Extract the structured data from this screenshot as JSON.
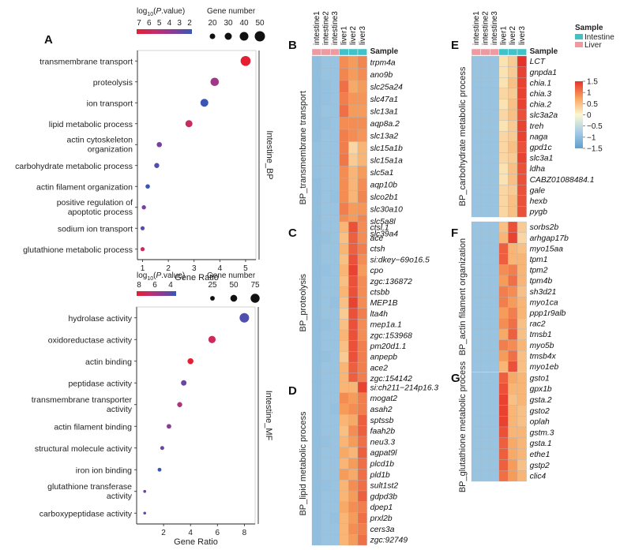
{
  "chart_data": [
    {
      "panel": "A",
      "type": "scatter",
      "facet": "Intestine_BP",
      "xlabel": "Gene Ratio",
      "xlim": [
        0.8,
        5.4
      ],
      "xticks": [
        "1",
        "2",
        "3",
        "4",
        "5"
      ],
      "color_legend_title": "log10(P.value)",
      "color_legend_ticks": [
        "7",
        "6",
        "5",
        "4",
        "3",
        "2"
      ],
      "size_legend_title": "Gene number",
      "size_legend_values": [
        "20",
        "30",
        "40",
        "50"
      ],
      "categories": [
        "transmembrane transport",
        "proteolysis",
        "ion transport",
        "lipid metabolic process",
        "actin cytoskeleton organization",
        "carbohydrate metabolic process",
        "actin filament organization",
        "positive regulation of apoptotic process",
        "sodium ion transport",
        "glutathione metabolic process"
      ],
      "gene_ratio": [
        5.0,
        3.8,
        3.4,
        2.8,
        1.65,
        1.55,
        1.2,
        1.05,
        1.0,
        1.0
      ],
      "neg_log10_p": [
        7,
        5,
        2,
        6,
        4,
        3,
        2,
        4,
        3,
        6
      ],
      "gene_number": [
        48,
        38,
        35,
        30,
        18,
        17,
        13,
        12,
        11,
        11
      ]
    },
    {
      "panel": "A2",
      "type": "scatter",
      "facet": "Intestine_MF",
      "xlabel": "Gene Ratio",
      "xlim": [
        0,
        8.8
      ],
      "xticks": [
        "2",
        "4",
        "6",
        "8"
      ],
      "color_legend_title": "log10(P.value)",
      "color_legend_ticks": [
        "8",
        "6",
        "4"
      ],
      "size_legend_title": "Gene number",
      "size_legend_values": [
        "25",
        "50",
        "75"
      ],
      "categories": [
        "hydrolase activity",
        "oxidoreductase activity",
        "actin binding",
        "peptidase activity",
        "transmembrane transporter activity",
        "actin filament binding",
        "structural molecule activity",
        "iron ion binding",
        "glutathione transferase activity",
        "carboxypeptidase activity"
      ],
      "gene_ratio": [
        8.0,
        5.6,
        4.0,
        3.5,
        3.2,
        2.4,
        1.9,
        1.7,
        0.6,
        0.6
      ],
      "neg_log10_p": [
        4,
        8,
        9,
        5,
        7,
        6,
        5,
        3,
        5,
        4
      ],
      "gene_number": [
        80,
        55,
        40,
        35,
        30,
        25,
        18,
        16,
        6,
        5
      ]
    },
    {
      "type": "heatmap",
      "columns": [
        "intestine1",
        "intestine2",
        "intestine3",
        "liver1",
        "liver2",
        "liver3"
      ],
      "annotation_label": "Sample",
      "annotation_legend_title": "Sample",
      "annotation_groups": [
        "Intestine",
        "Liver"
      ],
      "scale_ticks": [
        "1.5",
        "1",
        "0.5",
        "0",
        "−0.5",
        "−1",
        "−1.5"
      ],
      "scale_range": [
        -1.5,
        1.5
      ],
      "panels": [
        {
          "panel": "B",
          "title": "BP_transmembrane transport",
          "genes": [
            "trpm4a",
            "ano9b",
            "slc25a24",
            "slc47a1",
            "slc13a1",
            "aqp8a.2",
            "slc13a2",
            "slc15a1b",
            "slc15a1a",
            "slc5a1",
            "aqp10b",
            "slco2b1",
            "slc30a10",
            "slc5a8l",
            "slc39a4"
          ],
          "values": [
            [
              -1.0,
              -0.9,
              -0.9,
              0.9,
              0.8,
              0.95
            ],
            [
              -1.0,
              -0.9,
              -0.9,
              0.95,
              0.8,
              0.9
            ],
            [
              -1.0,
              -0.95,
              -0.9,
              1.1,
              0.7,
              0.8
            ],
            [
              -1.0,
              -0.95,
              -0.9,
              1.0,
              0.85,
              0.85
            ],
            [
              -1.0,
              -0.9,
              -0.9,
              1.1,
              0.8,
              0.8
            ],
            [
              -1.0,
              -0.95,
              -0.9,
              0.9,
              0.9,
              0.9
            ],
            [
              -1.0,
              -0.9,
              -0.9,
              1.0,
              0.9,
              0.85
            ],
            [
              -0.95,
              -0.9,
              -0.9,
              1.0,
              0.3,
              0.6
            ],
            [
              -0.95,
              -0.9,
              -0.9,
              1.05,
              0.4,
              0.6
            ],
            [
              -0.95,
              -0.9,
              -0.9,
              0.9,
              0.6,
              0.8
            ],
            [
              -1.0,
              -0.9,
              -0.9,
              0.9,
              0.6,
              0.9
            ],
            [
              -1.0,
              -0.9,
              -0.95,
              0.9,
              0.6,
              0.95
            ],
            [
              -1.0,
              -0.9,
              -0.9,
              1.0,
              0.8,
              0.85
            ],
            [
              -1.0,
              -0.9,
              -0.9,
              0.9,
              0.8,
              0.95
            ],
            [
              -1.0,
              -0.95,
              -0.9,
              0.9,
              0.85,
              0.95
            ]
          ]
        },
        {
          "panel": "C",
          "title": "BP_proteolysis",
          "genes": [
            "ctsl.1",
            "ace",
            "ctsh",
            "si:dkey−69o16.5",
            "cpo",
            "zgc:136872",
            "ctsbb",
            "MEP1B",
            "lta4h",
            "mep1a.1",
            "zgc:153968",
            "pm20d1.1",
            "anpepb",
            "ace2",
            "zgc:154142"
          ],
          "values": [
            [
              -1.0,
              -0.9,
              -0.9,
              0.6,
              1.3,
              0.9
            ],
            [
              -1.0,
              -0.95,
              -0.9,
              0.5,
              1.2,
              0.9
            ],
            [
              -1.0,
              -0.9,
              -0.9,
              0.6,
              1.2,
              1.0
            ],
            [
              -1.0,
              -0.9,
              -0.9,
              0.5,
              1.3,
              0.9
            ],
            [
              -1.0,
              -0.95,
              -0.9,
              0.6,
              1.4,
              0.8
            ],
            [
              -1.0,
              -0.9,
              -0.9,
              0.5,
              1.3,
              0.9
            ],
            [
              -1.0,
              -0.9,
              -0.9,
              0.6,
              1.3,
              0.9
            ],
            [
              -1.0,
              -0.9,
              -0.95,
              0.5,
              1.4,
              0.9
            ],
            [
              -1.0,
              -0.9,
              -0.9,
              0.4,
              1.3,
              1.0
            ],
            [
              -1.0,
              -0.95,
              -0.9,
              0.5,
              1.3,
              0.9
            ],
            [
              -1.0,
              -0.9,
              -0.9,
              0.6,
              1.3,
              0.9
            ],
            [
              -1.0,
              -0.9,
              -0.9,
              0.5,
              1.3,
              1.0
            ],
            [
              -1.0,
              -0.95,
              -0.9,
              0.4,
              1.3,
              1.0
            ],
            [
              -1.0,
              -0.9,
              -0.9,
              0.6,
              1.2,
              1.0
            ],
            [
              -1.0,
              -0.9,
              -0.9,
              0.6,
              1.2,
              1.0
            ]
          ]
        },
        {
          "panel": "D",
          "title": "BP_lipid metabolic process",
          "genes": [
            "si:ch211−214p16.3",
            "mogat2",
            "asah2",
            "sptssb",
            "faah2b",
            "neu3.3",
            "agpat9l",
            "plcd1b",
            "pld1b",
            "sult1st2",
            "gdpd3b",
            "dpep1",
            "prxl2b",
            "cers3a",
            "zgc:92749"
          ],
          "values": [
            [
              -1.0,
              -0.9,
              -0.9,
              0.6,
              0.6,
              1.4
            ],
            [
              -1.0,
              -0.9,
              -0.9,
              0.9,
              0.8,
              1.0
            ],
            [
              -1.0,
              -0.9,
              -0.95,
              0.8,
              0.9,
              1.0
            ],
            [
              -1.0,
              -0.9,
              -0.9,
              0.6,
              0.7,
              1.2
            ],
            [
              -1.0,
              -0.9,
              -0.9,
              0.5,
              0.9,
              1.2
            ],
            [
              -1.0,
              -0.95,
              -0.9,
              0.6,
              0.8,
              1.1
            ],
            [
              -1.0,
              -0.9,
              -0.9,
              0.7,
              0.6,
              1.2
            ],
            [
              -1.0,
              -0.9,
              -0.9,
              0.6,
              0.8,
              1.1
            ],
            [
              -1.0,
              -0.9,
              -0.9,
              0.8,
              0.7,
              1.1
            ],
            [
              -1.0,
              -0.95,
              -0.9,
              0.6,
              0.9,
              1.1
            ],
            [
              -1.0,
              -0.9,
              -0.9,
              0.6,
              0.8,
              1.2
            ],
            [
              -1.0,
              -0.9,
              -0.9,
              0.7,
              0.9,
              1.0
            ],
            [
              -1.0,
              -0.9,
              -0.95,
              0.6,
              0.8,
              1.1
            ],
            [
              -1.0,
              -0.9,
              -0.9,
              0.6,
              0.9,
              1.0
            ],
            [
              -1.0,
              -0.9,
              -0.9,
              0.6,
              0.8,
              1.1
            ]
          ]
        },
        {
          "panel": "E",
          "title": "BP_carbohydrate metabolic process",
          "genes": [
            "LCT",
            "gnpda1",
            "chia.1",
            "chia.3",
            "chia.2",
            "slc3a2a",
            "treh",
            "naga",
            "gpd1c",
            "slc3a1",
            "ldha",
            "CABZ01088484.1",
            "gale",
            "hexb",
            "pygb"
          ],
          "values": [
            [
              -0.9,
              -0.9,
              -0.9,
              0.2,
              0.4,
              1.5
            ],
            [
              -0.9,
              -0.9,
              -0.9,
              0.2,
              0.4,
              1.4
            ],
            [
              -0.9,
              -0.9,
              -0.9,
              0.2,
              0.5,
              1.4
            ],
            [
              -0.9,
              -0.9,
              -0.9,
              0.3,
              0.4,
              1.4
            ],
            [
              -0.9,
              -0.9,
              -0.9,
              0.2,
              0.5,
              1.4
            ],
            [
              -0.9,
              -0.9,
              -0.9,
              0.3,
              0.5,
              1.3
            ],
            [
              -0.9,
              -0.9,
              -0.9,
              0.2,
              0.4,
              1.4
            ],
            [
              -0.9,
              -0.9,
              -0.9,
              0.3,
              0.4,
              1.4
            ],
            [
              -0.9,
              -0.9,
              -0.9,
              0.3,
              0.5,
              1.3
            ],
            [
              -0.9,
              -0.9,
              -0.9,
              0.3,
              0.4,
              1.4
            ],
            [
              -0.9,
              -0.9,
              -0.9,
              0.2,
              0.5,
              1.3
            ],
            [
              -0.9,
              -0.9,
              -0.9,
              0.2,
              0.5,
              1.3
            ],
            [
              -0.9,
              -0.9,
              -0.9,
              0.3,
              0.4,
              1.3
            ],
            [
              -0.9,
              -0.9,
              -0.9,
              0.3,
              0.5,
              1.3
            ],
            [
              -0.9,
              -0.9,
              -0.9,
              0.3,
              0.5,
              1.3
            ]
          ]
        },
        {
          "panel": "F",
          "title": "BP_actin filament organization",
          "genes": [
            "sorbs2b",
            "arhgap17b",
            "myo15aa",
            "tpm1",
            "tpm2",
            "tpm4b",
            "sh3d21",
            "myo1ca",
            "ppp1r9alb",
            "rac2",
            "tmsb1",
            "myo5b",
            "tmsb4x",
            "myo1eb"
          ],
          "values": [
            [
              -0.9,
              -0.9,
              -0.9,
              0.5,
              1.3,
              0.4
            ],
            [
              -0.9,
              -0.9,
              -0.9,
              0.6,
              1.4,
              0.3
            ],
            [
              -0.9,
              -0.9,
              -0.9,
              1.2,
              0.6,
              0.5
            ],
            [
              -0.9,
              -0.9,
              -0.9,
              1.2,
              0.6,
              0.6
            ],
            [
              -0.9,
              -0.9,
              -0.9,
              0.9,
              1.0,
              0.6
            ],
            [
              -0.9,
              -0.9,
              -0.9,
              0.8,
              1.1,
              0.6
            ],
            [
              -0.9,
              -0.9,
              -0.9,
              1.0,
              0.9,
              0.5
            ],
            [
              -0.9,
              -0.9,
              -0.9,
              1.0,
              0.8,
              0.6
            ],
            [
              -0.9,
              -0.9,
              -0.9,
              0.8,
              1.0,
              0.6
            ],
            [
              -0.9,
              -0.9,
              -0.9,
              0.9,
              1.1,
              0.5
            ],
            [
              -0.9,
              -0.9,
              -0.9,
              0.7,
              1.2,
              0.5
            ],
            [
              -0.9,
              -0.9,
              -0.9,
              1.0,
              0.9,
              0.6
            ],
            [
              -0.9,
              -0.9,
              -0.9,
              0.8,
              1.1,
              0.5
            ],
            [
              -0.9,
              -0.9,
              -0.9,
              0.6,
              1.3,
              0.5
            ]
          ]
        },
        {
          "panel": "G",
          "title": "BP_glutathione metabolic process",
          "genes": [
            "gsto1",
            "gpx1b",
            "gsta.2",
            "gsto2",
            "oplah",
            "gstm.3",
            "gsta.1",
            "ethe1",
            "gstp2",
            "clic4"
          ],
          "values": [
            [
              -0.9,
              -0.9,
              -0.9,
              1.2,
              0.7,
              0.6
            ],
            [
              -0.9,
              -0.9,
              -0.9,
              1.3,
              0.6,
              0.6
            ],
            [
              -0.9,
              -0.9,
              -0.9,
              1.4,
              0.5,
              0.6
            ],
            [
              -0.9,
              -0.9,
              -0.9,
              1.4,
              0.6,
              0.5
            ],
            [
              -0.9,
              -0.9,
              -0.9,
              1.4,
              0.6,
              0.5
            ],
            [
              -0.9,
              -0.9,
              -0.9,
              1.3,
              0.6,
              0.6
            ],
            [
              -0.9,
              -0.9,
              -0.9,
              1.2,
              0.7,
              0.6
            ],
            [
              -0.9,
              -0.9,
              -0.9,
              1.2,
              0.7,
              0.6
            ],
            [
              -0.9,
              -0.9,
              -0.9,
              1.2,
              0.8,
              0.5
            ],
            [
              -0.9,
              -0.9,
              -0.9,
              1.1,
              0.8,
              0.6
            ]
          ]
        }
      ]
    }
  ],
  "colors": {
    "intestine": "#3fc3c9",
    "liver": "#ef9aa0",
    "heat_low": "#5f9fcf",
    "heat_mid": "#fbf8d1",
    "heat_high": "#e6332a",
    "p_gradient": [
      "#e51f32",
      "#c12e6e",
      "#8a3b96",
      "#5a4bab",
      "#3a56b5"
    ]
  }
}
